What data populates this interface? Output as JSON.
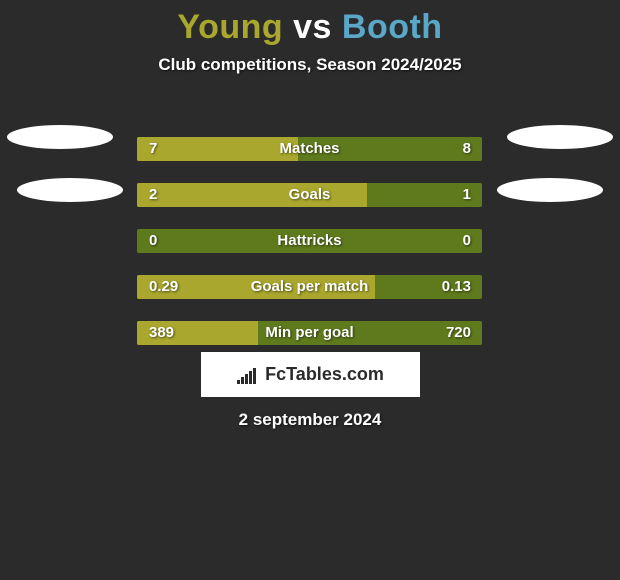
{
  "title": {
    "left": "Young",
    "vs": "vs",
    "right": "Booth"
  },
  "title_colors": {
    "left": "#a9a72e",
    "vs": "#ffffff",
    "right": "#5aa7c8"
  },
  "subtitle": "Club competitions, Season 2024/2025",
  "bar_track_width": 345,
  "bar_colors": {
    "left": "#a9a72e",
    "right": "#5f7a1d"
  },
  "rows": [
    {
      "label": "Matches",
      "left_val": "7",
      "right_val": "8",
      "left_pct": 46.7
    },
    {
      "label": "Goals",
      "left_val": "2",
      "right_val": "1",
      "left_pct": 66.7
    },
    {
      "label": "Hattricks",
      "left_val": "0",
      "right_val": "0",
      "left_pct": 0.0
    },
    {
      "label": "Goals per match",
      "left_val": "0.29",
      "right_val": "0.13",
      "left_pct": 69.0
    },
    {
      "label": "Min per goal",
      "left_val": "389",
      "right_val": "720",
      "left_pct": 35.1
    }
  ],
  "logo_text": "FcTables.com",
  "date": "2 september 2024"
}
